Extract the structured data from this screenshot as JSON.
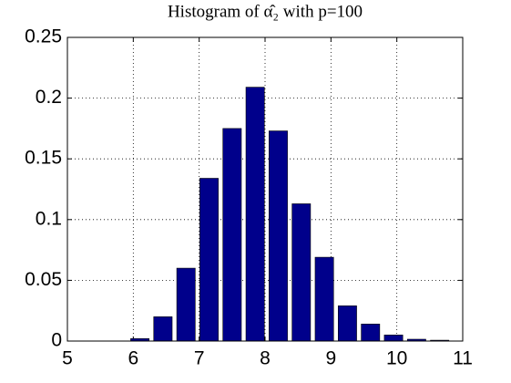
{
  "chart_data": {
    "type": "bar",
    "title": "Histogram of α̂₂ with p=100",
    "x": [
      6.1,
      6.45,
      6.8,
      7.15,
      7.5,
      7.85,
      8.2,
      8.55,
      8.9,
      9.25,
      9.6,
      9.95,
      10.3,
      10.65
    ],
    "values": [
      0.002,
      0.02,
      0.06,
      0.134,
      0.175,
      0.209,
      0.173,
      0.113,
      0.069,
      0.029,
      0.014,
      0.005,
      0.0015,
      0.0007
    ],
    "color": "#00008b",
    "xlim": [
      5,
      11
    ],
    "xticks": [
      5,
      6,
      7,
      8,
      9,
      10,
      11
    ],
    "ylim": [
      0,
      0.25
    ],
    "yticks": [
      0,
      0.05,
      0.1,
      0.15,
      0.2,
      0.25
    ],
    "grid": true
  }
}
